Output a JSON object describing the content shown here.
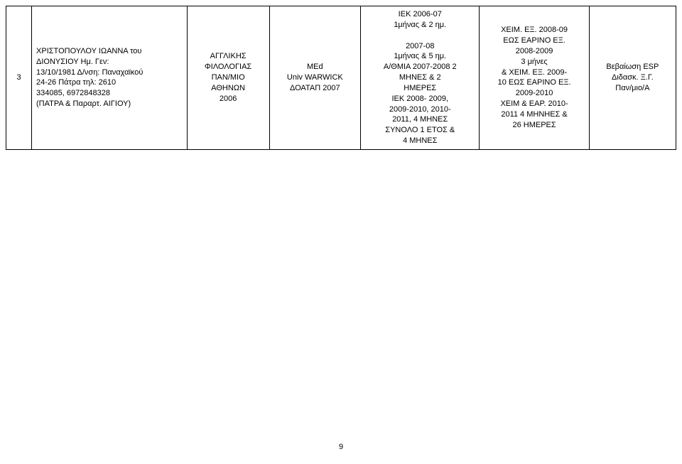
{
  "row": {
    "index": "3",
    "name_line1": "ΧΡΙΣΤΟΠΟΥΛΟΥ ΙΩΑΝΝΑ του",
    "name_line2": "ΔΙΟΝΥΣΙΟΥ Ημ. Γεν:",
    "name_line3": "13/10/1981 Δ/νση: Παναχαϊκού",
    "name_line4": "24-26 Πάτρα τηλ: 2610",
    "name_line5": "334085, 6972848328",
    "name_line6": "(ΠΑΤΡΑ & Παραρτ. ΑΙΓΙΟΥ)",
    "edu_line1": "ΑΓΓΛΙΚΗΣ",
    "edu_line2": "ΦΙΛΟΛΟΓΙΑΣ",
    "edu_line3": "ΠΑΝ/ΜΙΟ",
    "edu_line4": "ΑΘΗΝΩΝ",
    "edu_line5": "2006",
    "deg_line1": "MEd",
    "deg_line2": "Univ WARWICK",
    "deg_line3": "ΔΟΑΤΑΠ 2007",
    "main_line1": "ΙΕΚ 2006-07",
    "main_line2": "1μήνας & 2 ημ.",
    "main_line3": "2007-08",
    "main_line4": "1μήνας & 5 ημ.",
    "main_line5": "Α/ΘΜΙΑ 2007-2008 2",
    "main_line6": "ΜΗΝΕΣ & 2",
    "main_line7": "ΗΜΕΡΕΣ",
    "main_line8": "ΙΕΚ 2008- 2009,",
    "main_line9": "2009-2010, 2010-",
    "main_line10": "2011, 4 ΜΗΝΕΣ",
    "main_line11": "ΣΥΝΟΛΟ 1 ΕΤΟΣ &",
    "main_line12": "4 ΜΗΝΕΣ",
    "extra_line1": "ΧΕΙΜ. ΕΞ. 2008-09",
    "extra_line2": "ΕΩΣ ΕΑΡΙΝΟ ΕΞ.",
    "extra_line3": "2008-2009",
    "extra_line4": "3 μήνες",
    "extra_line5": "& ΧΕΙΜ. ΕΞ. 2009-",
    "extra_line6": "10 ΕΩΣ ΕΑΡΙΝΟ ΕΞ.",
    "extra_line7": "2009-2010",
    "extra_line8": "ΧΕΙΜ & ΕΑΡ. 2010-",
    "extra_line9": "2011 4 ΜΗΝΗΕΣ &",
    "extra_line10": "26 ΗΜΕΡΕΣ",
    "cert_line1": "Βεβαίωση ESP",
    "cert_line2": "Διδασκ. Ξ.Γ.",
    "cert_line3": "Παν/μιο/Α"
  },
  "page_number": "9"
}
